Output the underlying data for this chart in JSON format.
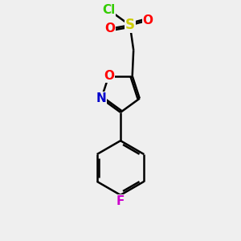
{
  "bg_color": "#efefef",
  "atom_colors": {
    "C": "#000000",
    "O": "#ff0000",
    "N": "#0000cc",
    "S": "#cccc00",
    "Cl": "#33cc00",
    "F": "#cc00cc"
  },
  "bond_color": "#000000",
  "bond_width": 1.8,
  "dbo": 0.07,
  "figsize": [
    3.0,
    3.0
  ],
  "dpi": 100
}
